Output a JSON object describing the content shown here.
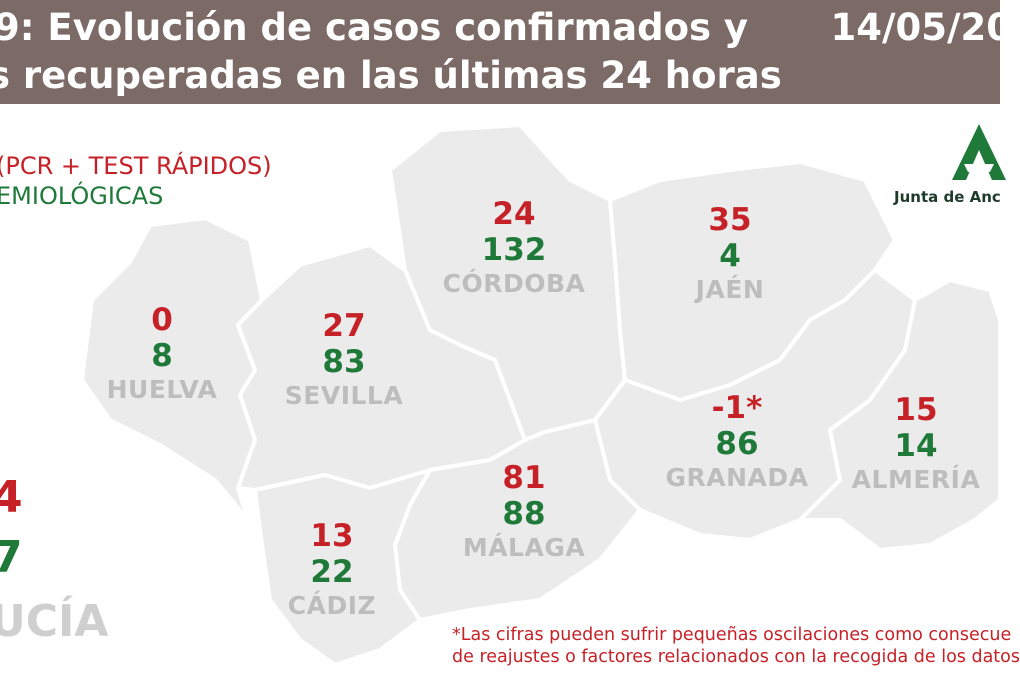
{
  "header": {
    "title_line1": "9: Evolución de casos confirmados y",
    "title_line2": "s recuperadas en las últimas 24 horas",
    "date": "14/05/20",
    "background": "#7b6a66"
  },
  "legend": {
    "confirmed_label": "(PCR + TEST RÁPIDOS)",
    "recovered_label": "EMIOLÓGICAS",
    "confirmed_color": "#c62127",
    "recovered_color": "#1f7a3a"
  },
  "logo": {
    "text": "Junta de Anc",
    "icon": "junta-de-andalucia-logo-icon"
  },
  "provinces": [
    {
      "name": "HUELVA",
      "confirmed": "0",
      "recovered": "8"
    },
    {
      "name": "SEVILLA",
      "confirmed": "27",
      "recovered": "83"
    },
    {
      "name": "CÓRDOBA",
      "confirmed": "24",
      "recovered": "132"
    },
    {
      "name": "JAÉN",
      "confirmed": "35",
      "recovered": "4"
    },
    {
      "name": "GRANADA",
      "confirmed": "-1*",
      "recovered": "86"
    },
    {
      "name": "ALMERÍA",
      "confirmed": "15",
      "recovered": "14"
    },
    {
      "name": "MÁLAGA",
      "confirmed": "81",
      "recovered": "88"
    },
    {
      "name": "CÁDIZ",
      "confirmed": "13",
      "recovered": "22"
    }
  ],
  "total": {
    "confirmed": "4",
    "recovered": "7",
    "region": "UCÍA"
  },
  "footnote": {
    "line1": "*Las cifras pueden sufrir pequeñas oscilaciones como consecue",
    "line2": "de reajustes o factores relacionados con la recogida de los datos"
  }
}
